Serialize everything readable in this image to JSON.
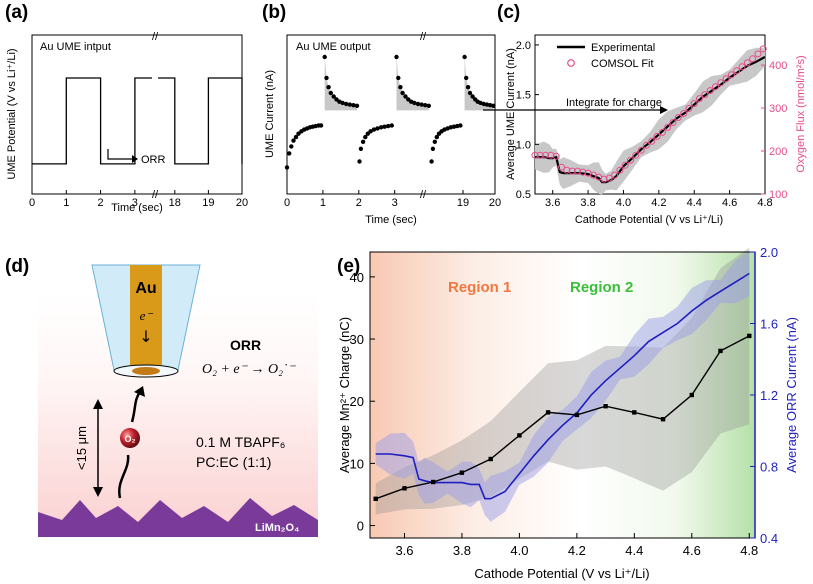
{
  "panels": {
    "a": "(a)",
    "b": "(b)",
    "c": "(c)",
    "d": "(d)",
    "e": "(e)"
  },
  "chart_data": [
    {
      "id": "a",
      "type": "line",
      "title": "Au UME intput",
      "xlabel": "Time (sec)",
      "ylabel": "UME Potential (V vs Li⁺/Li)",
      "xticks": [
        "0",
        "1",
        "2",
        "3",
        "18",
        "19",
        "20"
      ],
      "annotation": "ORR",
      "series": [
        {
          "name": "segment 1",
          "x": [
            0,
            1,
            1,
            2,
            2,
            3,
            3,
            3.5
          ],
          "y": [
            1.2,
            1.2,
            3.2,
            3.2,
            1.2,
            1.2,
            3.2,
            3.2
          ]
        },
        {
          "name": "segment 2",
          "x": [
            17.5,
            18,
            18,
            19,
            19,
            20,
            20
          ],
          "y": [
            3.2,
            3.2,
            1.2,
            1.2,
            3.2,
            3.2,
            1.2
          ]
        }
      ],
      "high_level": 3.2,
      "low_level": 1.2
    },
    {
      "id": "b",
      "type": "scatter",
      "title": "Au UME output",
      "xlabel": "Time (sec)",
      "ylabel": "UME Current (nA)",
      "xticks": [
        "0",
        "1",
        "2",
        "3",
        "19",
        "20"
      ],
      "series": [
        {
          "name": "pulse 1",
          "x": [
            0.0,
            0.06,
            0.12,
            0.18,
            0.25,
            0.32,
            0.4,
            0.48,
            0.56,
            0.64,
            0.72,
            0.8,
            0.88,
            0.95
          ],
          "y": [
            -4.6,
            -3.4,
            -2.8,
            -2.3,
            -2.0,
            -1.7,
            -1.5,
            -1.35,
            -1.25,
            -1.15,
            -1.1,
            -1.05,
            -1.0,
            -1.0
          ]
        },
        {
          "name": "pulse 2",
          "x": [
            1.05,
            1.1,
            1.16,
            1.22,
            1.3,
            1.38,
            1.46,
            1.55,
            1.65,
            1.75,
            1.85,
            1.95
          ],
          "y": [
            4.9,
            3.1,
            2.3,
            1.8,
            1.5,
            1.25,
            1.05,
            0.95,
            0.85,
            0.8,
            0.75,
            0.7
          ]
        },
        {
          "name": "pulse 3",
          "x": [
            2.02,
            2.06,
            2.12,
            2.18,
            2.25,
            2.33,
            2.42,
            2.52,
            2.62,
            2.72,
            2.82,
            2.92
          ],
          "y": [
            -4.1,
            -3.0,
            -2.4,
            -2.0,
            -1.7,
            -1.5,
            -1.35,
            -1.25,
            -1.15,
            -1.1,
            -1.05,
            -1.0
          ]
        },
        {
          "name": "pulse 4",
          "x": [
            3.05,
            3.1,
            3.16,
            3.22,
            3.3,
            3.38,
            3.46,
            3.55,
            3.65,
            3.75,
            3.85,
            3.95
          ],
          "y": [
            4.9,
            3.1,
            2.3,
            1.8,
            1.5,
            1.25,
            1.05,
            0.95,
            0.85,
            0.8,
            0.75,
            0.7
          ]
        },
        {
          "name": "pulse 5",
          "x": [
            18.02,
            18.06,
            18.12,
            18.18,
            18.25,
            18.33,
            18.42,
            18.52,
            18.62,
            18.72,
            18.82,
            18.92
          ],
          "y": [
            -4.1,
            -3.0,
            -2.4,
            -2.0,
            -1.7,
            -1.5,
            -1.35,
            -1.25,
            -1.15,
            -1.1,
            -1.05,
            -1.0
          ]
        },
        {
          "name": "pulse 6",
          "x": [
            19.05,
            19.1,
            19.16,
            19.22,
            19.3,
            19.38,
            19.46,
            19.55,
            19.65,
            19.75,
            19.85,
            19.95
          ],
          "y": [
            4.9,
            3.1,
            2.3,
            1.8,
            1.5,
            1.25,
            1.05,
            0.95,
            0.85,
            0.8,
            0.75,
            0.7
          ]
        }
      ],
      "ylim": [
        -5,
        5.5
      ]
    },
    {
      "id": "c",
      "type": "line",
      "xlabel": "Cathode Potential (V vs Li⁺/Li)",
      "ylabel": "Average UME Current (nA)",
      "y2label": "Oxygen Flux (nmol/m²s)",
      "annotation": "Integrate for charge",
      "legend": [
        "Experimental",
        "COMSOL Fit"
      ],
      "xlim": [
        3.5,
        4.8
      ],
      "ylim": [
        0.5,
        2.1
      ],
      "y2lim": [
        100,
        470
      ],
      "xticks": [
        "3.6",
        "3.8",
        "4.0",
        "4.2",
        "4.4",
        "4.6",
        "4.8"
      ],
      "yticks": [
        "0.5",
        "1.0",
        "1.5",
        "2.0"
      ],
      "y2ticks": [
        "100",
        "200",
        "300",
        "400"
      ],
      "experimental": {
        "x": [
          3.5,
          3.55,
          3.58,
          3.6,
          3.62,
          3.64,
          3.66,
          3.7,
          3.75,
          3.8,
          3.83,
          3.86,
          3.88,
          3.9,
          3.93,
          3.96,
          4.0,
          4.05,
          4.1,
          4.15,
          4.2,
          4.25,
          4.3,
          4.35,
          4.4,
          4.45,
          4.5,
          4.55,
          4.6,
          4.65,
          4.7,
          4.75,
          4.8
        ],
        "y": [
          0.87,
          0.87,
          0.86,
          0.86,
          0.87,
          0.72,
          0.71,
          0.71,
          0.71,
          0.7,
          0.68,
          0.66,
          0.62,
          0.62,
          0.64,
          0.68,
          0.78,
          0.86,
          0.95,
          1.02,
          1.1,
          1.18,
          1.26,
          1.32,
          1.4,
          1.48,
          1.54,
          1.6,
          1.67,
          1.73,
          1.79,
          1.83,
          1.88
        ]
      },
      "comsol_fit": {
        "x": [
          3.5,
          3.53,
          3.56,
          3.59,
          3.62,
          3.65,
          3.68,
          3.71,
          3.74,
          3.77,
          3.8,
          3.83,
          3.86,
          3.89,
          3.92,
          3.95,
          3.98,
          4.01,
          4.04,
          4.07,
          4.1,
          4.13,
          4.16,
          4.19,
          4.22,
          4.25,
          4.28,
          4.31,
          4.34,
          4.37,
          4.4,
          4.43,
          4.46,
          4.49,
          4.52,
          4.55,
          4.58,
          4.61,
          4.64,
          4.67,
          4.7,
          4.73,
          4.76,
          4.79
        ],
        "y": [
          0.89,
          0.89,
          0.89,
          0.89,
          0.88,
          0.77,
          0.74,
          0.73,
          0.73,
          0.72,
          0.71,
          0.69,
          0.67,
          0.65,
          0.66,
          0.69,
          0.74,
          0.79,
          0.84,
          0.89,
          0.94,
          0.99,
          1.03,
          1.08,
          1.12,
          1.17,
          1.22,
          1.27,
          1.31,
          1.36,
          1.41,
          1.46,
          1.5,
          1.54,
          1.58,
          1.62,
          1.66,
          1.7,
          1.74,
          1.78,
          1.82,
          1.86,
          1.91,
          1.96
        ]
      }
    },
    {
      "id": "e",
      "type": "line",
      "xlabel": "Cathode Potential (V vs Li⁺/Li)",
      "ylabel": "Average Mn²⁺ Charge (nC)",
      "y2label": "Average ORR Current (nA)",
      "xlim": [
        3.48,
        4.82
      ],
      "ylim": [
        -2,
        44
      ],
      "y2lim": [
        0.4,
        2.0
      ],
      "xticks": [
        "3.6",
        "3.8",
        "4.0",
        "4.2",
        "4.4",
        "4.6",
        "4.8"
      ],
      "yticks": [
        "0",
        "10",
        "20",
        "30",
        "40"
      ],
      "y2ticks": [
        "0.4",
        "0.8",
        "1.2",
        "1.6",
        "2.0"
      ],
      "regions": [
        "Region 1",
        "Region 2"
      ],
      "mn_charge": {
        "x": [
          3.5,
          3.6,
          3.7,
          3.8,
          3.9,
          4.0,
          4.1,
          4.2,
          4.3,
          4.4,
          4.5,
          4.6,
          4.7,
          4.8
        ],
        "y": [
          4.3,
          6.0,
          7.0,
          8.5,
          10.7,
          14.5,
          18.2,
          17.8,
          19.2,
          18.2,
          17.1,
          21.0,
          28.1,
          30.5
        ]
      },
      "orr_current": {
        "x": [
          3.5,
          3.55,
          3.6,
          3.63,
          3.65,
          3.67,
          3.7,
          3.75,
          3.8,
          3.83,
          3.86,
          3.88,
          3.9,
          3.95,
          4.0,
          4.05,
          4.1,
          4.15,
          4.2,
          4.25,
          4.3,
          4.35,
          4.4,
          4.45,
          4.5,
          4.55,
          4.6,
          4.65,
          4.7,
          4.75,
          4.8
        ],
        "y": [
          0.87,
          0.87,
          0.86,
          0.85,
          0.73,
          0.72,
          0.71,
          0.71,
          0.71,
          0.7,
          0.7,
          0.62,
          0.62,
          0.66,
          0.76,
          0.86,
          0.95,
          1.03,
          1.1,
          1.2,
          1.28,
          1.35,
          1.42,
          1.5,
          1.55,
          1.6,
          1.67,
          1.73,
          1.78,
          1.83,
          1.88
        ]
      }
    }
  ],
  "schematic": {
    "electrode": "Au",
    "electron": "e⁻",
    "down_arrow": "↓",
    "reaction_title": "ORR",
    "reaction": "O₂ + e⁻ → O₂˙⁻",
    "distance": "<15 μm",
    "species": "O₂",
    "electrolyte_line1": "0.1 M TBAPF₆",
    "electrolyte_line2": "PC:EC (1:1)",
    "substrate": "LiMn₂O₄"
  },
  "colors": {
    "black": "#000000",
    "grey_band": "#c8c8c8",
    "pink_axis": "#e64c8c",
    "blue_series": "#1f1fc0",
    "blue_band": "#9b9ee8",
    "region1_text": "#f07840",
    "region2_text": "#38c038",
    "schematic_bg": "#fde2e2",
    "gold": "#d99a1a",
    "substrate": "#7a3a9a",
    "tip_glass": "#bfe3f5",
    "red_ball": "#c0202a"
  }
}
